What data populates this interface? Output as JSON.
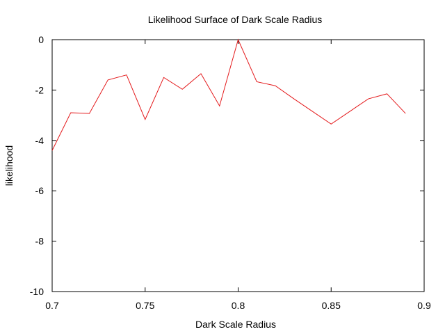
{
  "chart_data": {
    "type": "line",
    "title": "Likelihood Surface of Dark Scale Radius",
    "xlabel": "Dark Scale Radius",
    "ylabel": "likelihood",
    "xlim": [
      0.7,
      0.9
    ],
    "ylim": [
      -10,
      0
    ],
    "xticks": [
      0.7,
      0.75,
      0.8,
      0.85,
      0.9
    ],
    "xtick_labels": [
      "0.7",
      "0.75",
      "0.8",
      "0.85",
      "0.9"
    ],
    "yticks": [
      0,
      -2,
      -4,
      -6,
      -8,
      -10
    ],
    "ytick_labels": [
      "0",
      "-2",
      "-4",
      "-6",
      "-8",
      "-10"
    ],
    "grid": false,
    "series": [
      {
        "color": "#e41a1c",
        "x": [
          0.7,
          0.71,
          0.72,
          0.73,
          0.74,
          0.75,
          0.76,
          0.77,
          0.78,
          0.79,
          0.8,
          0.81,
          0.82,
          0.83,
          0.84,
          0.85,
          0.86,
          0.87,
          0.88,
          0.89
        ],
        "y": [
          -4.4,
          -2.9,
          -2.93,
          -1.6,
          -1.4,
          -3.17,
          -1.5,
          -1.97,
          -1.35,
          -2.63,
          0.0,
          -1.67,
          -1.83,
          -2.35,
          -2.85,
          -3.35,
          -2.85,
          -2.35,
          -2.15,
          -2.93
        ]
      }
    ]
  }
}
